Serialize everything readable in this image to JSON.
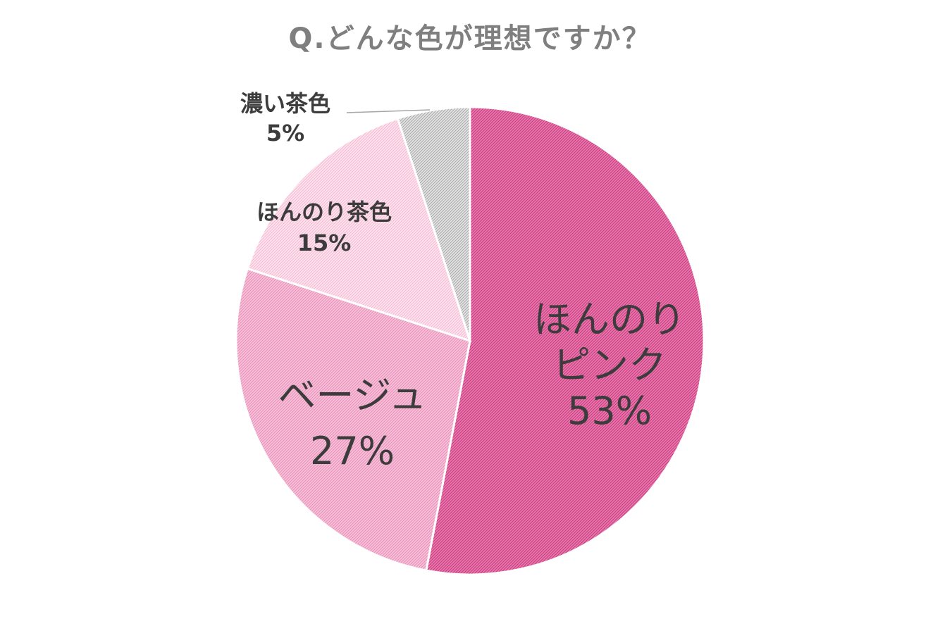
{
  "chart_data": {
    "type": "pie",
    "title": "Q.どんな色が理想ですか？",
    "slices": [
      {
        "label_lines": [
          "ほんのり",
          "ピンク"
        ],
        "value": 53,
        "value_label": "53%",
        "color": "#e878ad",
        "hatch": "#c63a7d"
      },
      {
        "label_lines": [
          "ベージュ"
        ],
        "value": 27,
        "value_label": "27%",
        "color": "#f6c1d9",
        "hatch": "#e88fb8"
      },
      {
        "label_lines": [
          "ほんのり茶色"
        ],
        "value": 15,
        "value_label": "15%",
        "color": "#fde4ee",
        "hatch": "#f5b9d1"
      },
      {
        "label_lines": [
          "濃い茶色"
        ],
        "value": 5,
        "value_label": "5%",
        "color": "#e4e4e4",
        "hatch": "#a8a8a8"
      }
    ],
    "start_angle_deg": 0,
    "direction": "clockwise",
    "leader_color": "#a6a6a6"
  }
}
